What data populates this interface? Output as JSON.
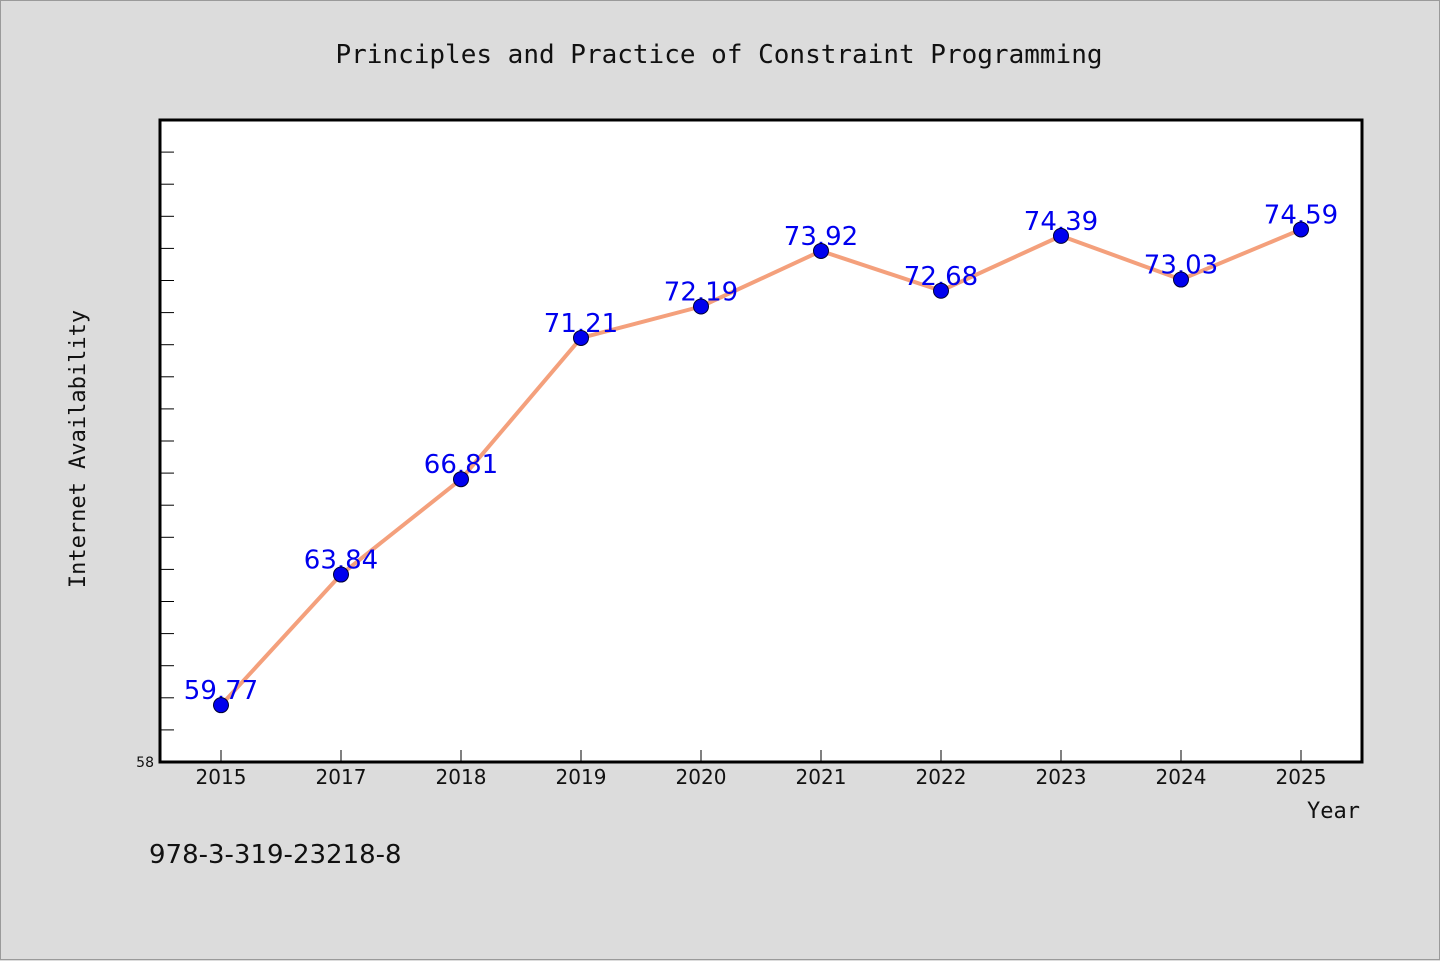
{
  "footer_code": "978-3-319-23218-8",
  "colors": {
    "line": "#f4a07c",
    "marker": "#0000ee",
    "data_label": "#0000ee",
    "plot_bg": "#ffffff",
    "page_bg": "#dcdcdc"
  },
  "chart_data": {
    "type": "line",
    "title": "Principles and Practice of Constraint Programming",
    "xlabel": "Year",
    "ylabel": "Internet Availability",
    "categories": [
      "2015",
      "2017",
      "2018",
      "2019",
      "2020",
      "2021",
      "2022",
      "2023",
      "2024",
      "2025"
    ],
    "series": [
      {
        "values": [
          59.77,
          63.84,
          66.81,
          71.21,
          72.19,
          73.92,
          72.68,
          74.39,
          73.03,
          74.59
        ]
      }
    ],
    "data_labels": [
      "59.77",
      "63.84",
      "66.81",
      "71.21",
      "72.19",
      "73.92",
      "72.68",
      "74.39",
      "73.03",
      "74.59"
    ],
    "ylim": [
      58,
      78
    ],
    "y_tick_labels": [
      "58"
    ],
    "grid": false,
    "legend": "none"
  }
}
